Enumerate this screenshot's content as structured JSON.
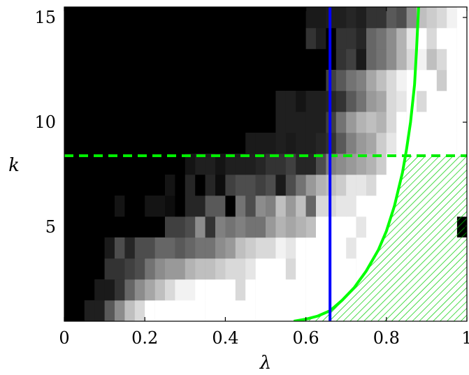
{
  "chart_data": {
    "type": "heatmap",
    "title": "",
    "xlabel": "λ",
    "ylabel": "k",
    "xlim": [
      0,
      1
    ],
    "ylim": [
      0.5,
      15.5
    ],
    "xticks": [
      0,
      0.2,
      0.4,
      0.6,
      0.8,
      1
    ],
    "xtick_labels": [
      "0",
      "0.2",
      "0.4",
      "0.6",
      "0.8",
      "1"
    ],
    "yticks": [
      5,
      10,
      15
    ],
    "ytick_labels": [
      "5",
      "10",
      "15"
    ],
    "grid": false,
    "colormap": "grayscale (black = low, white = high)",
    "colors": {
      "vertical_line": "#0000ff",
      "curve": "#00ff00",
      "dashed_line": "#00ee00",
      "hatch": "#00cc00",
      "background": "#000000"
    },
    "vertical_line": {
      "x": 0.66
    },
    "dashed_line": {
      "y": 8.4
    },
    "curve": {
      "x": [
        0.57,
        0.6,
        0.63,
        0.66,
        0.69,
        0.72,
        0.75,
        0.78,
        0.8,
        0.82,
        0.84,
        0.85,
        0.86,
        0.87,
        0.875,
        0.88
      ],
      "y": [
        0.5,
        0.6,
        0.75,
        1.0,
        1.5,
        2.1,
        2.9,
        3.9,
        4.8,
        6.0,
        7.6,
        8.7,
        10.0,
        11.8,
        13.5,
        15.5
      ]
    },
    "hatched_region": {
      "description": "region below curve and below dashed line, right of curve",
      "y_max": 8.4
    },
    "heatmap": {
      "x_bin_width": 0.025,
      "k_rows": [
        {
          "k": 1,
          "start": 0.05,
          "levels": [
            0.12,
            0.12,
            0.35,
            0.55,
            0.75,
            0.85,
            1,
            1,
            1,
            1,
            1,
            1,
            1,
            1,
            1,
            1,
            1,
            1,
            1,
            1,
            1,
            1,
            1,
            1,
            1,
            1,
            1,
            1,
            1,
            1,
            1,
            1,
            1,
            1,
            1,
            1,
            1,
            1
          ]
        },
        {
          "k": 2,
          "start": 0.075,
          "levels": [
            0.1,
            0.1,
            0.2,
            0.4,
            0.55,
            0.65,
            0.75,
            0.85,
            0.95,
            0.95,
            1,
            1,
            1,
            1,
            0.85,
            1,
            1,
            1,
            1,
            1,
            1,
            1,
            1,
            1,
            1,
            1,
            1,
            1,
            1,
            1,
            1,
            1,
            1,
            1,
            1,
            1,
            1
          ]
        },
        {
          "k": 3,
          "start": 0.1,
          "levels": [
            0.2,
            0.2,
            0.25,
            0.3,
            0.45,
            0.55,
            0.6,
            0.6,
            0.7,
            0.75,
            0.75,
            0.8,
            0.85,
            0.85,
            0.9,
            1,
            1,
            1,
            0.85,
            1,
            1,
            1,
            1,
            1,
            1,
            1,
            1,
            1,
            1,
            1,
            1,
            1,
            1,
            1,
            1,
            1,
            1
          ]
        },
        {
          "k": 4,
          "start": 0.1,
          "levels": [
            0.1,
            0.3,
            0.15,
            0.3,
            0.3,
            0.4,
            0.4,
            0.35,
            0.4,
            0.45,
            0.45,
            0.55,
            0.6,
            0.75,
            0.8,
            0.85,
            0.85,
            0.95,
            0.9,
            1,
            1,
            1,
            1,
            1,
            0.9,
            1,
            1,
            1,
            1,
            1,
            1,
            1,
            1,
            1,
            1,
            1,
            1
          ]
        },
        {
          "k": 5,
          "start": 0.25,
          "levels": [
            0.25,
            0.25,
            0.3,
            0.55,
            0.2,
            0.5,
            0.45,
            0.5,
            0.45,
            0.45,
            0.6,
            0.7,
            0.65,
            0.7,
            0.75,
            1,
            1,
            1,
            1,
            0.9,
            1,
            1,
            1,
            1,
            1,
            1,
            1,
            1,
            1
          ]
        },
        {
          "k": 6,
          "start": 0.125,
          "levels": [
            0.08,
            0,
            0,
            0.08,
            0.08,
            0.05,
            0,
            0.15,
            0.15,
            0.35,
            0.35,
            0,
            0.45,
            0.3,
            0.55,
            0.5,
            0.75,
            0.6,
            0.75,
            0.4,
            0.85,
            0.85,
            0.9,
            0.9,
            1,
            1,
            1,
            1,
            1,
            1,
            1,
            1,
            1,
            1,
            1
          ]
        },
        {
          "k": 7,
          "start": 0.25,
          "levels": [
            0.08,
            0,
            0.15,
            0,
            0.15,
            0.05,
            0.25,
            0.3,
            0.3,
            0.25,
            0.3,
            0.1,
            0.3,
            0.45,
            0.6,
            0.7,
            0.75,
            0.8,
            0.9,
            0.9,
            0.85,
            1,
            1,
            1,
            1,
            1,
            1,
            1,
            1,
            1,
            1,
            1
          ]
        },
        {
          "k": 8,
          "start": 0.3,
          "levels": [
            0.08,
            0.12,
            0.12,
            0.08,
            0.12,
            0.12,
            0.12,
            0.15,
            0.2,
            0.2,
            0.25,
            0.15,
            0.15,
            0.3,
            0.5,
            0.55,
            0.6,
            0.65,
            0.7,
            0.8,
            1,
            1,
            1,
            1,
            1,
            1,
            1,
            1
          ]
        },
        {
          "k": 9,
          "start": 0.45,
          "levels": [
            0.1,
            0.1,
            0.1,
            0.12,
            0.1,
            0.12,
            0.12,
            0.15,
            0.2,
            0.35,
            0.5,
            0.6,
            0.65,
            0.8,
            0.9,
            1,
            1,
            1,
            1,
            1,
            1,
            1
          ]
        },
        {
          "k": 10,
          "start": 0.525,
          "levels": [
            0.12,
            0.12,
            0.12,
            0.12,
            0.12,
            0.25,
            0.45,
            0.6,
            0.7,
            0.75,
            0.7,
            0.85,
            1,
            1,
            1,
            1,
            1,
            1,
            1,
            1,
            1
          ]
        },
        {
          "k": 11,
          "start": 0.525,
          "levels": [
            0.12,
            0.12,
            0.08,
            0.12,
            0.12,
            0.15,
            0.2,
            0.35,
            0.45,
            0.6,
            0.65,
            0.85,
            0.9,
            1,
            0.85,
            1,
            1,
            1,
            1,
            1
          ]
        },
        {
          "k": 12,
          "start": 0.65,
          "levels": [
            0.25,
            0.35,
            0.45,
            0.5,
            0.65,
            0.75,
            0.85,
            0.95,
            1,
            1,
            1,
            0.8,
            1,
            1,
            1
          ]
        },
        {
          "k": 13,
          "start": 0.675,
          "levels": [
            0.2,
            0.25,
            0.1,
            0.4,
            0.45,
            0.55,
            0.7,
            0.85,
            0.95,
            0.75,
            0.85,
            1,
            1,
            1
          ]
        },
        {
          "k": 14,
          "start": 0.6,
          "levels": [
            0.2,
            0.12,
            0,
            0.2,
            0.2,
            0.15,
            0.4,
            0.45,
            0.55,
            0.7,
            0.9,
            1,
            0.85,
            1,
            1,
            1,
            1
          ]
        },
        {
          "k": 15,
          "start": 0.6,
          "levels": [
            0.1,
            0.1,
            0.12,
            0.12,
            0.15,
            0.12,
            0.2,
            0.2,
            0.35,
            0.3,
            0.55,
            0.75,
            0.8,
            0.85,
            0.95,
            1,
            1
          ]
        }
      ]
    }
  }
}
